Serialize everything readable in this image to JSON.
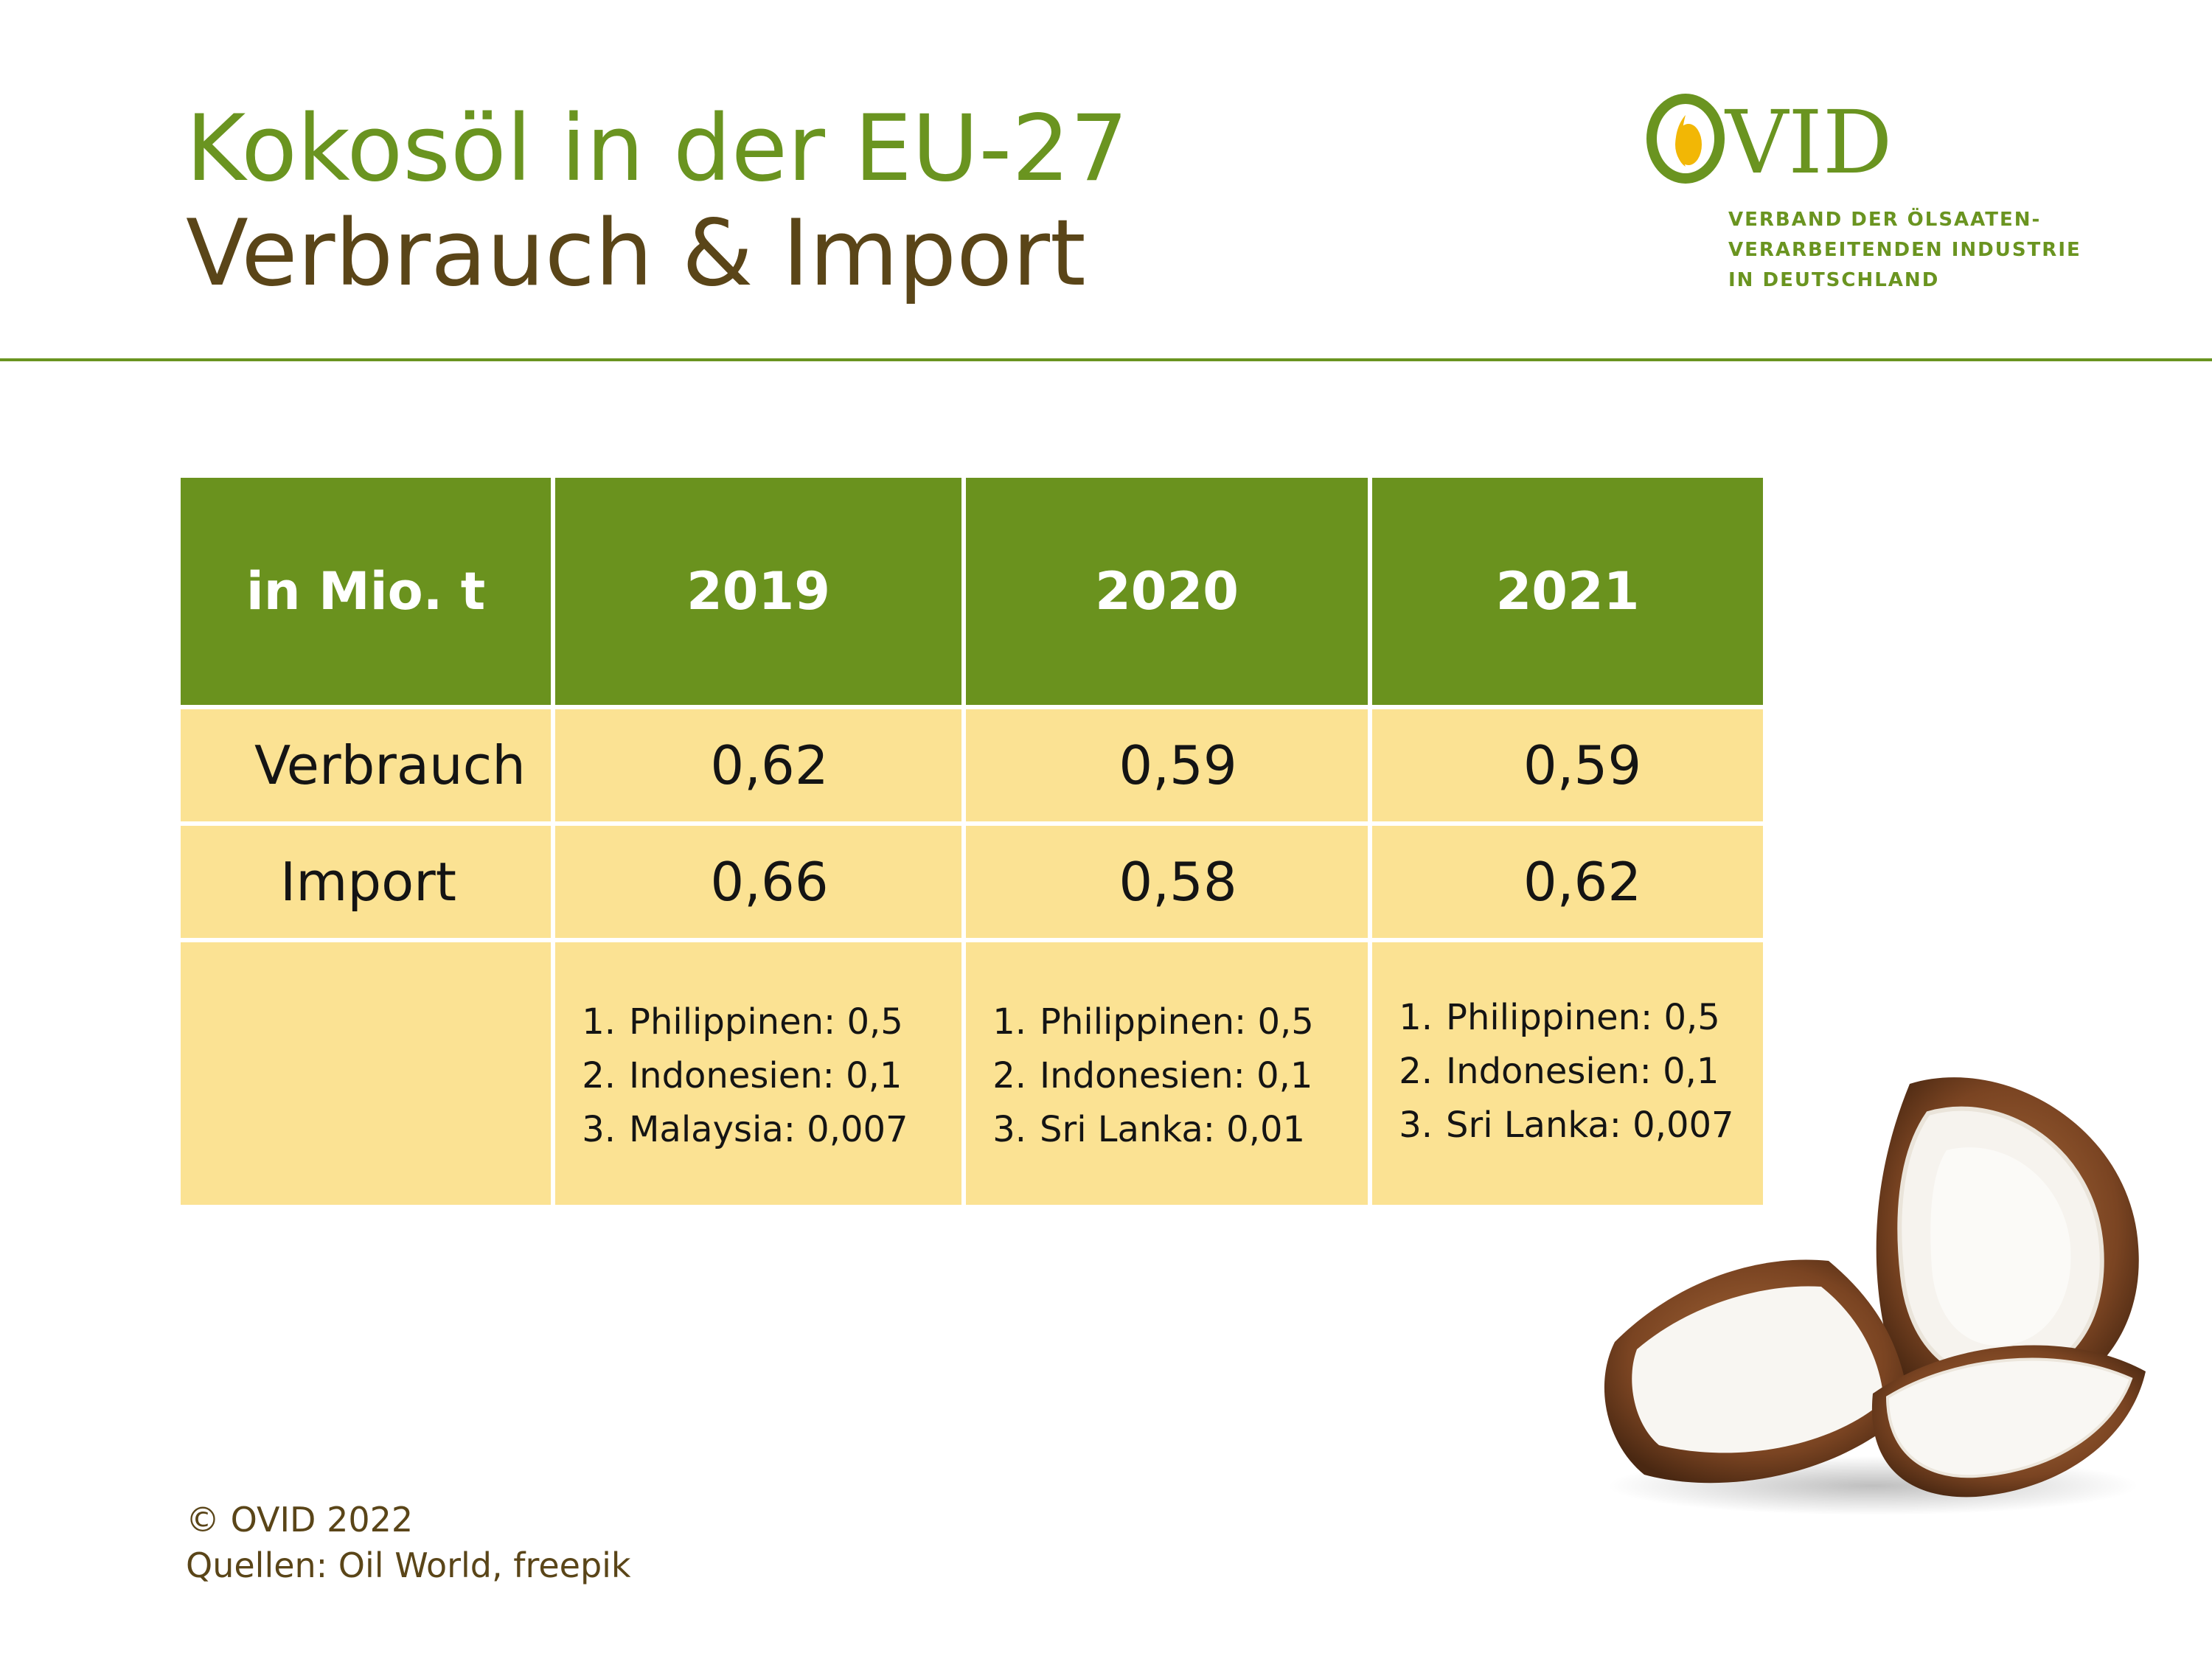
{
  "header": {
    "title_line1": "Kokosöl in der EU-27",
    "title_line2": "Verbrauch & Import"
  },
  "logo": {
    "name": "OVID",
    "tagline": [
      "VERBAND DER ÖLSAATEN-",
      "VERARBEITENDEN INDUSTRIE",
      "IN DEUTSCHLAND"
    ]
  },
  "table": {
    "header": [
      "in Mio. t",
      "2019",
      "2020",
      "2021"
    ],
    "rows": [
      {
        "label": "Verbrauch",
        "values": [
          "0,62",
          "0,59",
          "0,59"
        ]
      },
      {
        "label": "Import",
        "values": [
          "0,66",
          "0,58",
          "0,62"
        ]
      }
    ],
    "origins": [
      [
        {
          "num": "1.",
          "text": "Philippinen: 0,5"
        },
        {
          "num": "2.",
          "text": "Indonesien: 0,1"
        },
        {
          "num": "3.",
          "text": "Malaysia: 0,007"
        }
      ],
      [
        {
          "num": "1.",
          "text": "Philippinen: 0,5"
        },
        {
          "num": "2.",
          "text": "Indonesien: 0,1"
        },
        {
          "num": "3.",
          "text": "Sri Lanka: 0,01"
        }
      ],
      [
        {
          "num": "1.",
          "text": "Philippinen: 0,5"
        },
        {
          "num": "2.",
          "text": "Indonesien: 0,1"
        },
        {
          "num": "3.",
          "text": "Sri Lanka: 0,007"
        }
      ]
    ]
  },
  "footer": {
    "copyright": "© OVID 2022",
    "sources": "Quellen: Oil World, freepik"
  },
  "colors": {
    "green": "#6a921e",
    "brown": "#5a4518",
    "cell_yellow": "#fbe293"
  },
  "image": {
    "icon": "coconut-photo"
  }
}
